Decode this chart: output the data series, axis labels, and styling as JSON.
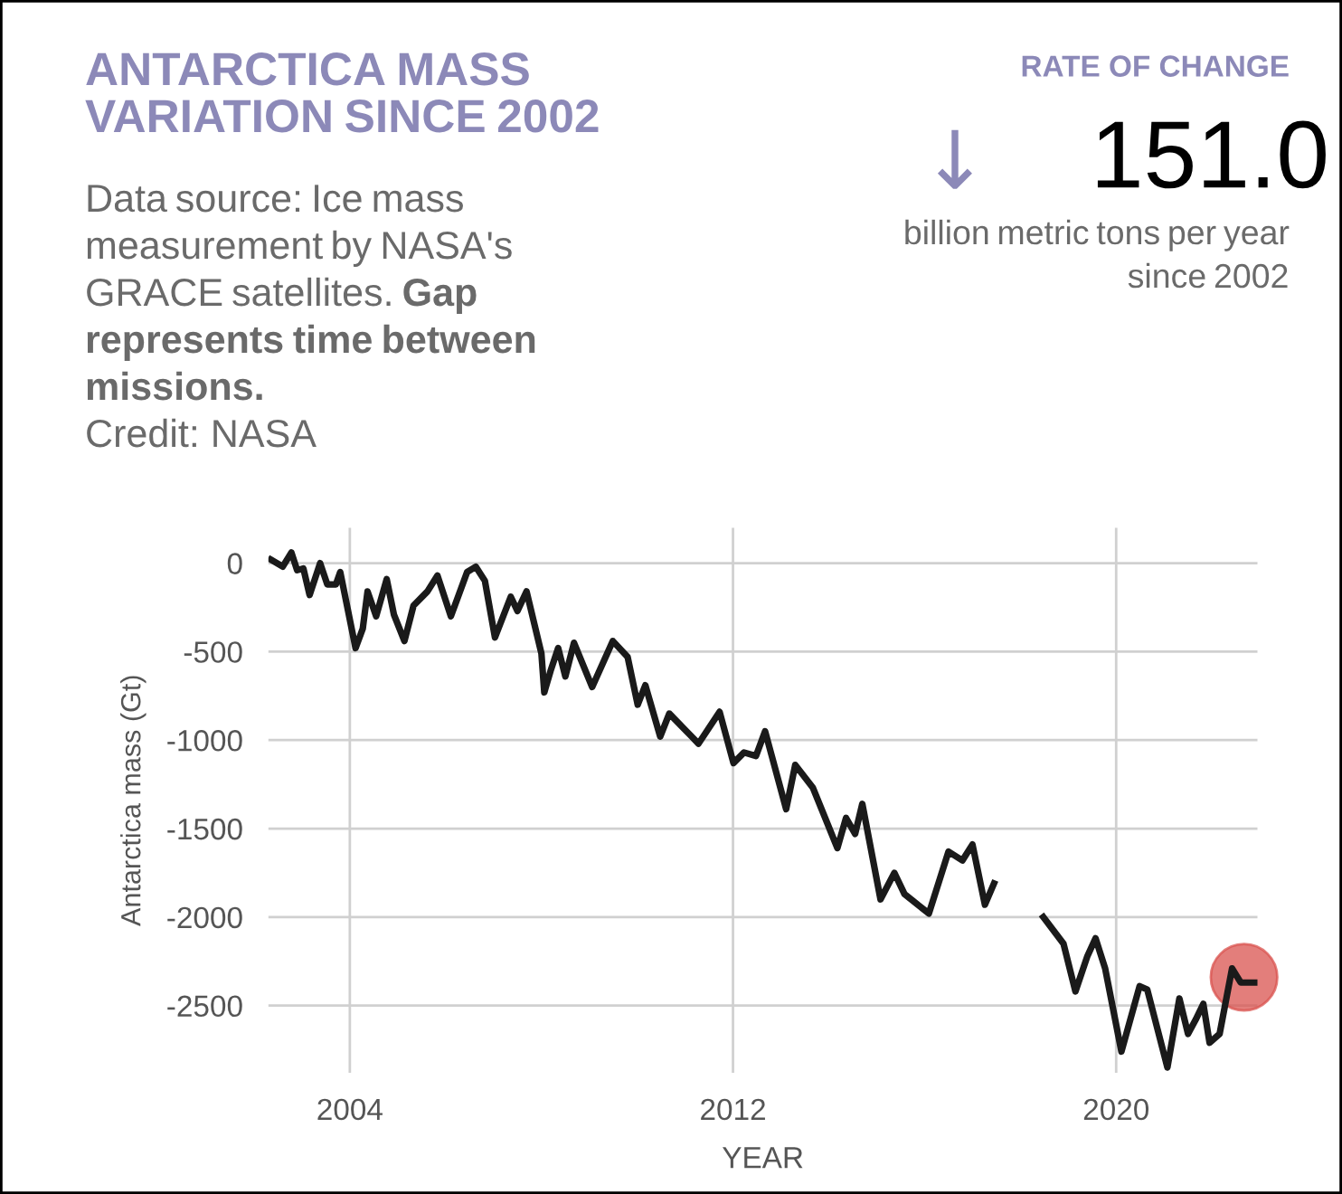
{
  "chart_data": {
    "type": "line",
    "title": "ANTARCTICA MASS VARIATION SINCE 2002",
    "subtitle": "Data source: Ice mass measurement by NASA's GRACE satellites.",
    "annotations": [
      "Gap represents time between missions.",
      "Credit: NASA",
      "RATE OF CHANGE",
      "↓",
      "151.0",
      "billion metric tons per year since 2002"
    ],
    "xlabel": "YEAR",
    "ylabel": "Antarctica mass (Gt)",
    "xlim": [
      2002.3,
      2022.95
    ],
    "xticks": [
      2004,
      2012,
      2020
    ],
    "ylim": [
      -2880,
      200
    ],
    "yticks": [
      0,
      -500,
      -1000,
      -1500,
      -2000,
      -2500
    ],
    "grid": true,
    "legend": false,
    "line_style": "solid",
    "series": [
      {
        "color": "#1a1a1a",
        "x": [
          2002.35,
          2002.6,
          2002.78,
          2002.9,
          2003.03,
          2003.16,
          2003.38,
          2003.53,
          2003.71,
          2003.8,
          2004.12,
          2004.27,
          2004.37,
          2004.55,
          2004.77,
          2004.92,
          2005.14,
          2005.33,
          2005.62,
          2005.83,
          2006.11,
          2006.45,
          2006.63,
          2006.82,
          2007.03,
          2007.36,
          2007.5,
          2007.69,
          2008.0,
          2008.06,
          2008.19,
          2008.35,
          2008.5,
          2008.68,
          2009.06,
          2009.49,
          2009.8,
          2010.01,
          2010.17,
          2010.48,
          2010.67,
          2011.03,
          2011.28,
          2011.72,
          2012.01,
          2012.23,
          2012.48,
          2012.67,
          2013.11,
          2013.3,
          2013.67,
          2014.18,
          2014.36,
          2014.55,
          2014.7,
          2015.08,
          2015.37,
          2015.58,
          2016.09,
          2016.5,
          2016.79,
          2017.0,
          2017.26,
          2017.45,
          2018.0,
          2018.48,
          2018.9,
          2019.15,
          2019.4,
          2019.57,
          2019.77,
          2020.11,
          2020.49,
          2020.65,
          2021.07,
          2021.32,
          2021.5,
          2021.66,
          2021.82,
          2021.95,
          2022.16,
          2022.42,
          2022.6,
          2022.92
        ],
        "values": [
          20,
          -20,
          60,
          -40,
          -30,
          -180,
          0,
          -120,
          -120,
          -50,
          -480,
          -370,
          -160,
          -300,
          -90,
          -290,
          -440,
          -240,
          -160,
          -70,
          -300,
          -50,
          -20,
          -100,
          -420,
          -190,
          -270,
          -160,
          -510,
          -730,
          -610,
          -480,
          -640,
          -450,
          -700,
          -440,
          -530,
          -800,
          -690,
          -980,
          -850,
          -950,
          -1020,
          -840,
          -1130,
          -1070,
          -1090,
          -950,
          -1390,
          -1140,
          -1270,
          -1610,
          -1440,
          -1530,
          -1360,
          -1900,
          -1750,
          -1870,
          -1980,
          -1630,
          -1680,
          -1590,
          -1930,
          -1810,
          null,
          -2000,
          -2150,
          -2420,
          -2220,
          -2120,
          -2290,
          -2760,
          -2390,
          -2410,
          -2850,
          -2460,
          -2660,
          -2580,
          -2490,
          -2710,
          -2660,
          -2290,
          -2370,
          -2370
        ]
      },
      {
        "type": "scatter",
        "color": "#d9534f",
        "x": [
          2022.67
        ],
        "values": [
          -2340
        ]
      }
    ]
  }
}
